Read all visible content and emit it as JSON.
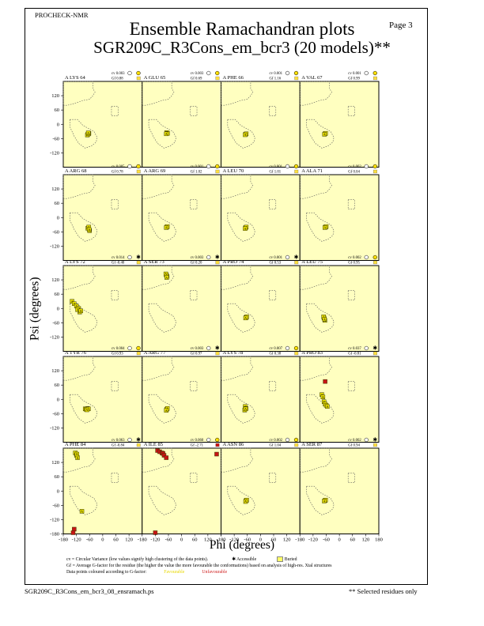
{
  "header": {
    "program": "PROCHECK-NMR",
    "page": "Page  3",
    "title": "Ensemble Ramachandran plots",
    "subtitle": "SGR209C_R3Cons_em_bcr3 (20 models)**"
  },
  "axes": {
    "xlabel": "Phi (degrees)",
    "ylabel": "Psi (degrees)",
    "xticks": [
      "-180",
      "-120",
      "-60",
      "0",
      "60",
      "120",
      "180"
    ],
    "yticks": [
      "120",
      "60",
      "0",
      "-60",
      "-120"
    ],
    "yticks_bottom": [
      "120",
      "60",
      "0",
      "-60",
      "-120",
      "-180"
    ]
  },
  "legend": {
    "line1": "cv = Circular Variance (low values signify high clustering of the data points).",
    "accessible": "Accessible",
    "buried": "Buried",
    "line2": "Gf = Average G-factor for the residue (the higher the value the more favourable the conformations) based on analysis of high-res. Xtal structures",
    "line3": "Data points coloured according to G-factor:",
    "favourable": "Favourable",
    "unfavourable": "Unfavourable"
  },
  "footer": {
    "file": "SGR209C_R3Cons_em_bcr3_08_ensramach.ps",
    "note": "** Selected residues only"
  },
  "colors": {
    "panel": "#ffffc0",
    "favourable": "#e8e000",
    "unfavourable": "#c81414",
    "orange": "#d07820"
  },
  "chart_data": {
    "type": "scatter",
    "xlim": [
      -180,
      180
    ],
    "ylim": [
      -180,
      180
    ],
    "panels": [
      {
        "label": "A LYS 64",
        "cv": "cv 0.003",
        "gf": "Gf 0.88",
        "access": "accessible",
        "points": [
          [
            -68,
            -42
          ],
          [
            -63,
            -38
          ],
          [
            -70,
            -45
          ],
          [
            -65,
            -40
          ],
          [
            -66,
            -36
          ]
        ]
      },
      {
        "label": "A GLU 65",
        "cv": "cv 0.003",
        "gf": "Gf 0.69",
        "access": "accessible",
        "points": [
          [
            -68,
            -35
          ],
          [
            -64,
            -38
          ],
          [
            -70,
            -40
          ]
        ]
      },
      {
        "label": "A PHE 66",
        "cv": "cv 0.001",
        "gf": "Gf 1.16",
        "access": "accessible",
        "points": [
          [
            -68,
            -42
          ],
          [
            -65,
            -40
          ],
          [
            -70,
            -44
          ]
        ]
      },
      {
        "label": "A VAL 67",
        "cv": "cv 0.001",
        "gf": "Gf 0.99",
        "access": "accessible",
        "points": [
          [
            -66,
            -40
          ],
          [
            -63,
            -38
          ],
          [
            -68,
            -42
          ]
        ]
      },
      {
        "label": "A ARG 68",
        "cv": "cv 0.005",
        "gf": "Gf 0.78",
        "access": "accessible",
        "points": [
          [
            -68,
            -45
          ],
          [
            -64,
            -40
          ],
          [
            -60,
            -55
          ],
          [
            -62,
            -50
          ]
        ]
      },
      {
        "label": "A ARG 69",
        "cv": "cv 0.001",
        "gf": "Gf 1.02",
        "access": "accessible",
        "points": [
          [
            -68,
            -40
          ],
          [
            -65,
            -38
          ],
          [
            -70,
            -42
          ]
        ]
      },
      {
        "label": "A LEU 70",
        "cv": "cv 0.001",
        "gf": "Gf 1.01",
        "access": "accessible",
        "points": [
          [
            -68,
            -42
          ],
          [
            -65,
            -40
          ],
          [
            -70,
            -46
          ]
        ]
      },
      {
        "label": "A ALA 71",
        "cv": "cv 0.002",
        "gf": "Gf 0.04",
        "access": "accessible",
        "points": [
          [
            -64,
            -40
          ],
          [
            -60,
            -38
          ],
          [
            -66,
            -42
          ]
        ]
      },
      {
        "label": "A LYS 72",
        "cv": "cv 0.014",
        "gf": "Gf -0.40",
        "access": "buried",
        "points": [
          [
            -140,
            30
          ],
          [
            -130,
            20
          ],
          [
            -120,
            10
          ],
          [
            -110,
            0
          ],
          [
            -105,
            -15
          ],
          [
            -115,
            -5
          ],
          [
            -100,
            -10
          ]
        ]
      },
      {
        "label": "A SER 73",
        "cv": "cv 0.003",
        "gf": "Gf 0.20",
        "access": "buried",
        "points": [
          [
            -70,
            140
          ],
          [
            -66,
            135
          ],
          [
            -72,
            145
          ],
          [
            -68,
            130
          ]
        ]
      },
      {
        "label": "A PRO 74",
        "cv": "cv 0.001",
        "gf": "Gf 0.53",
        "access": "buried",
        "points": [
          [
            -66,
            -38
          ],
          [
            -63,
            -35
          ],
          [
            -68,
            -40
          ]
        ]
      },
      {
        "label": "A LEU 75",
        "cv": "cv 0.002",
        "gf": "Gf 0.95",
        "access": "accessible",
        "points": [
          [
            -70,
            -40
          ],
          [
            -66,
            -50
          ],
          [
            -72,
            -35
          ],
          [
            -68,
            -45
          ]
        ]
      },
      {
        "label": "A TYR 76",
        "cv": "cv 0.004",
        "gf": "Gf 0.93",
        "access": "accessible",
        "points": [
          [
            -80,
            -40
          ],
          [
            -75,
            -42
          ],
          [
            -70,
            -38
          ],
          [
            -65,
            -40
          ],
          [
            -72,
            -44
          ]
        ]
      },
      {
        "label": "A ARG 77",
        "cv": "cv 0.003",
        "gf": "Gf 0.97",
        "access": "buried",
        "points": [
          [
            -68,
            -42
          ],
          [
            -65,
            -38
          ],
          [
            -70,
            -46
          ]
        ]
      },
      {
        "label": "A LYS 78",
        "cv": "cv 0.007",
        "gf": "Gf 0.38",
        "access": "accessible",
        "points": [
          [
            -70,
            -30
          ],
          [
            -66,
            -38
          ],
          [
            -72,
            -45
          ],
          [
            -68,
            -40
          ]
        ]
      },
      {
        "label": "A PRO 83",
        "cv": "cv 0.037",
        "gf": "Gf -0.81",
        "access": "buried",
        "points": [
          [
            -65,
            75
          ],
          [
            -80,
            20
          ],
          [
            -75,
            10
          ],
          [
            -70,
            -10
          ],
          [
            -65,
            -20
          ],
          [
            -60,
            -25
          ],
          [
            -55,
            -30
          ]
        ]
      },
      {
        "label": "A PHE 84",
        "cv": "cv 0.063",
        "gf": "Gf -0.84",
        "access": "buried",
        "points": [
          [
            -125,
            160
          ],
          [
            -120,
            150
          ],
          [
            -115,
            140
          ],
          [
            -118,
            155
          ],
          [
            -95,
            -85
          ],
          [
            -130,
            -160
          ],
          [
            -135,
            -175
          ]
        ]
      },
      {
        "label": "A ILE 85",
        "cv": "cv 0.060",
        "gf": "Gf -2.71",
        "access": "unfavourable",
        "points": [
          [
            -110,
            170
          ],
          [
            -100,
            165
          ],
          [
            -90,
            160
          ],
          [
            -85,
            158
          ],
          [
            -80,
            150
          ],
          [
            -70,
            140
          ],
          [
            -120,
            -175
          ],
          [
            160,
            155
          ]
        ]
      },
      {
        "label": "A ASN 86",
        "cv": "cv 0.002",
        "gf": "Gf 1.04",
        "access": "accessible",
        "points": [
          [
            -66,
            -40
          ],
          [
            -63,
            -38
          ],
          [
            -68,
            -44
          ]
        ]
      },
      {
        "label": "A SER 87",
        "cv": "cv 0.002",
        "gf": "Gf 0.94",
        "access": "buried",
        "points": [
          [
            -66,
            -40
          ],
          [
            -63,
            -38
          ],
          [
            -69,
            -42
          ]
        ]
      }
    ]
  }
}
